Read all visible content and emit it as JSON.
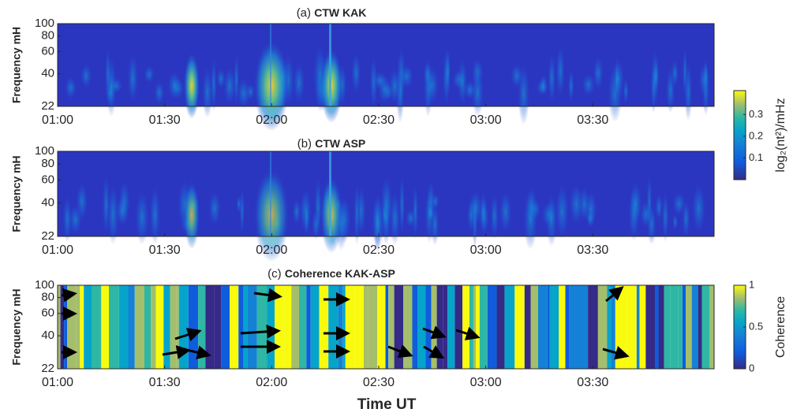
{
  "chart_data": [
    {
      "type": "heatmap",
      "label": "(a)",
      "title": "CTW KAK",
      "ylabel": "Frequency mH",
      "log_y": true,
      "ylim": [
        22,
        100
      ],
      "yticks": [
        22,
        40,
        60,
        80,
        100
      ],
      "xlim": [
        "01:00",
        "04:04"
      ],
      "xticks": [
        "01:00",
        "01:30",
        "02:00",
        "02:30",
        "03:00",
        "03:30"
      ],
      "colorbar": {
        "label": "log₂(nt²)/mHz",
        "clim": [
          0,
          0.41
        ],
        "ticks": [
          0.1,
          0.2,
          0.3
        ]
      }
    },
    {
      "type": "heatmap",
      "label": "(b)",
      "title": "CTW ASP",
      "ylabel": "Frequency mH",
      "log_y": true,
      "ylim": [
        22,
        100
      ],
      "yticks": [
        22,
        40,
        60,
        80,
        100
      ],
      "xlim": [
        "01:00",
        "04:04"
      ],
      "xticks": [
        "01:00",
        "01:30",
        "02:00",
        "02:30",
        "03:00",
        "03:30"
      ]
    },
    {
      "type": "heatmap",
      "label": "(c)",
      "title": "Coherence KAK-ASP",
      "ylabel": "Frequency mH",
      "log_y": true,
      "ylim": [
        22,
        100
      ],
      "yticks": [
        22,
        40,
        60,
        80,
        100
      ],
      "xlim": [
        "01:00",
        "04:04"
      ],
      "xticks": [
        "01:00",
        "01:30",
        "02:00",
        "02:30",
        "03:00",
        "03:30"
      ],
      "xlabel": "Time UT",
      "colorbar": {
        "label": "Coherence",
        "clim": [
          0,
          1
        ],
        "ticks": [
          0,
          0.5,
          1
        ]
      }
    }
  ]
}
